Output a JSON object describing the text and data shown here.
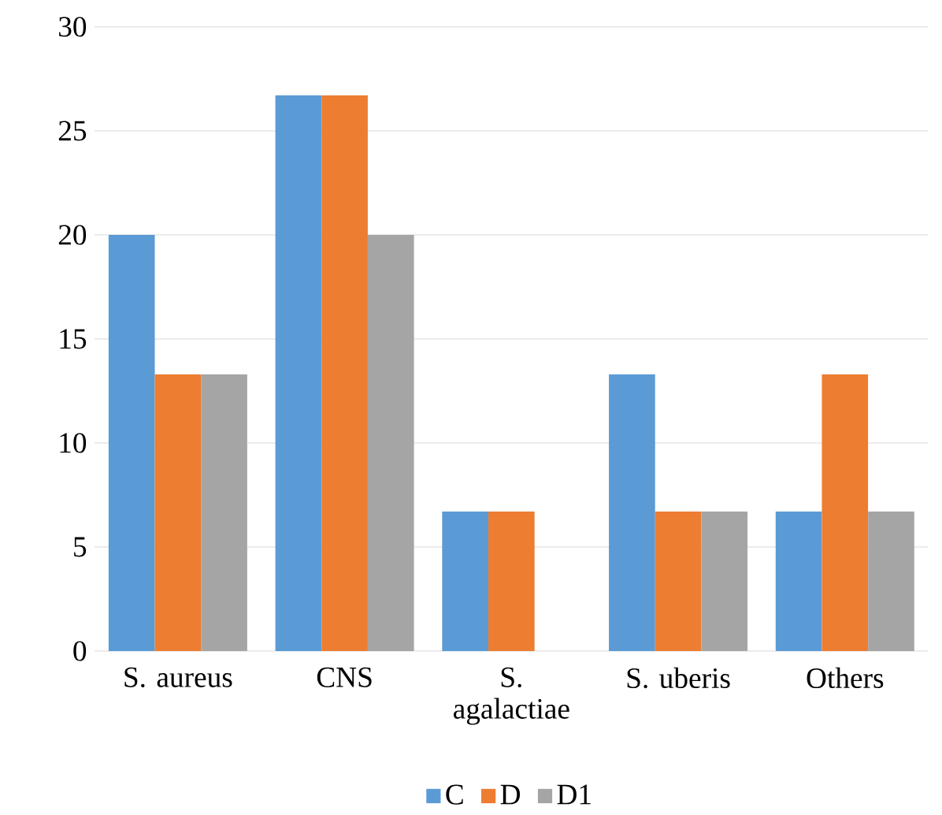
{
  "chart_data": {
    "type": "bar",
    "categories": [
      "S. aureus",
      "CNS",
      "S. agalactiae",
      "S. uberis",
      "Others"
    ],
    "series": [
      {
        "name": "C",
        "color": "#5b9bd5",
        "values": [
          20,
          26.7,
          6.7,
          13.3,
          6.7
        ]
      },
      {
        "name": "D",
        "color": "#ed7d31",
        "values": [
          13.3,
          26.7,
          6.7,
          6.7,
          13.3
        ]
      },
      {
        "name": "D1",
        "color": "#a5a5a5",
        "values": [
          13.3,
          20,
          0,
          6.7,
          6.7
        ]
      }
    ],
    "ylim": [
      0,
      30
    ],
    "yticks": [
      0,
      5,
      10,
      15,
      20,
      25,
      30
    ],
    "grid": "y",
    "legend": "bottom"
  }
}
